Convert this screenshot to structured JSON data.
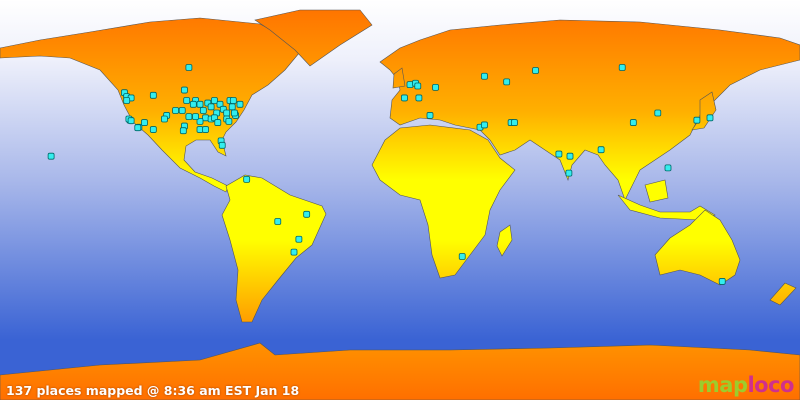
{
  "caption": "137 places mapped @ 8:36 am EST Jan 18",
  "logo": {
    "part1": "map",
    "part2": "loco"
  },
  "colors": {
    "ocean_top": "#ffffff",
    "ocean_bottom": "#3a63d4",
    "land_polar": "#ff6f00",
    "land_equator": "#ffff00",
    "marker_fill": "#33eeee",
    "marker_stroke": "#006666"
  },
  "markers": [
    [
      -95,
      58
    ],
    [
      -124,
      49
    ],
    [
      -123,
      47.5
    ],
    [
      -121,
      47
    ],
    [
      -123,
      46
    ],
    [
      -111,
      48
    ],
    [
      -97,
      50
    ],
    [
      -96,
      46
    ],
    [
      -101,
      42
    ],
    [
      -105,
      40
    ],
    [
      -121.5,
      38
    ],
    [
      -122,
      38.5
    ],
    [
      -121,
      37.8
    ],
    [
      -117.5,
      35
    ],
    [
      -118,
      34.8
    ],
    [
      -115,
      37
    ],
    [
      -111,
      34
    ],
    [
      -157,
      22
    ],
    [
      -92,
      46
    ],
    [
      -90,
      44.5
    ],
    [
      -88.5,
      42
    ],
    [
      -86.5,
      45
    ],
    [
      -85,
      43.5
    ],
    [
      -83.5,
      46
    ],
    [
      -82.5,
      41
    ],
    [
      -81,
      44.5
    ],
    [
      -79.5,
      42.5
    ],
    [
      -78,
      41
    ],
    [
      -76.5,
      46
    ],
    [
      -75.5,
      43.5
    ],
    [
      -74,
      40
    ],
    [
      -72,
      44.5
    ],
    [
      -87.5,
      39
    ],
    [
      -85,
      38.5
    ],
    [
      -83.5,
      39
    ],
    [
      -82,
      37
    ],
    [
      -90,
      37.5
    ],
    [
      -92,
      39.5
    ],
    [
      -95,
      39.5
    ],
    [
      -98,
      42
    ],
    [
      -93,
      44.5
    ],
    [
      -106,
      38.5
    ],
    [
      -97,
      35.5
    ],
    [
      -97.5,
      33.5
    ],
    [
      -90,
      34
    ],
    [
      -87.5,
      34
    ],
    [
      -78,
      38.5
    ],
    [
      -77,
      37.5
    ],
    [
      -74.5,
      41
    ],
    [
      -75,
      46
    ],
    [
      -80.5,
      29
    ],
    [
      -80,
      27
    ],
    [
      -69,
      11
    ],
    [
      -55,
      -9.5
    ],
    [
      -42,
      -6
    ],
    [
      -45.5,
      -18
    ],
    [
      -47.7,
      -24
    ],
    [
      4.5,
      52
    ],
    [
      7,
      52.5
    ],
    [
      8,
      51.5
    ],
    [
      2,
      47
    ],
    [
      8.5,
      47
    ],
    [
      16,
      51
    ],
    [
      13.5,
      40
    ],
    [
      38,
      55
    ],
    [
      48,
      53
    ],
    [
      61,
      57
    ],
    [
      36,
      35
    ],
    [
      38,
      36
    ],
    [
      50,
      37
    ],
    [
      51.5,
      37
    ],
    [
      71.5,
      23
    ],
    [
      76.5,
      22
    ],
    [
      76,
      14
    ],
    [
      90.5,
      25
    ],
    [
      100,
      58
    ],
    [
      116,
      41
    ],
    [
      105,
      37
    ],
    [
      120.6,
      16.5
    ],
    [
      133.6,
      38
    ],
    [
      139.5,
      39
    ],
    [
      145,
      -37
    ],
    [
      28,
      -26
    ]
  ]
}
